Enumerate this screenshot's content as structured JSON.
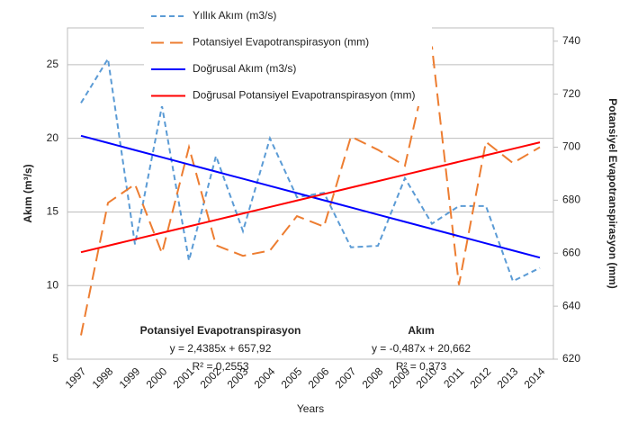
{
  "chart_data": {
    "type": "line",
    "categories": [
      "1997",
      "1998",
      "1999",
      "2000",
      "2001",
      "2002",
      "2003",
      "2004",
      "2005",
      "2006",
      "2007",
      "2008",
      "2009",
      "2010",
      "2011",
      "2012",
      "2013",
      "2014"
    ],
    "x_label": "Years",
    "y_label": "Akım (m³/s)",
    "y2_label": "Potansiyel Evapotranspirasyon (mm)",
    "ylim": [
      5,
      27.5
    ],
    "yticks": [
      5,
      10,
      15,
      20,
      25
    ],
    "y2lim": [
      620,
      745
    ],
    "y2ticks": [
      620,
      640,
      660,
      680,
      700,
      720,
      740
    ],
    "grid": true,
    "legend": "top-left",
    "series": [
      {
        "name": "Yıllık Akım (m3/s)",
        "color": "#5b9bd5",
        "dash": "6,4",
        "axis": "y",
        "values": [
          22.4,
          25.4,
          12.8,
          22.2,
          11.7,
          18.8,
          13.7,
          20.0,
          16.0,
          16.3,
          12.6,
          12.7,
          17.3,
          14.2,
          15.4,
          15.4,
          10.3,
          11.2
        ]
      },
      {
        "name": "Potansiyel Evapotranspirasyon (mm)",
        "color": "#ed7d31",
        "dash": "14,7",
        "axis": "y2",
        "values": [
          629,
          679,
          686,
          660,
          700,
          663,
          659,
          661,
          674,
          670,
          704,
          699,
          693,
          738,
          648,
          702,
          694,
          700
        ]
      },
      {
        "name": "Doğrusal Akım (m3/s)",
        "color": "#0000ff",
        "axis": "y",
        "values": [
          20.175,
          19.688,
          19.201,
          18.714,
          18.227,
          17.74,
          17.253,
          16.766,
          16.279,
          15.792,
          15.305,
          14.818,
          14.331,
          13.844,
          13.357,
          12.87,
          12.383,
          11.896
        ]
      },
      {
        "name": "Doğrusal Potansiyel Evapotranspirasyon (mm)",
        "color": "#ff0000",
        "axis": "y2",
        "values": [
          660.36,
          662.8,
          665.24,
          667.67,
          670.11,
          672.55,
          674.99,
          677.43,
          679.87,
          682.31,
          684.74,
          687.18,
          689.62,
          692.06,
          694.5,
          696.94,
          699.37,
          701.81
        ]
      }
    ],
    "annotations": [
      [
        "Potansiyel Evapotranspirasyon",
        "y = 2,4385x + 657,92",
        "R² = 0,2553"
      ],
      [
        "Akım",
        "y = -0,487x + 20,662",
        "R² = 0,373"
      ]
    ]
  }
}
